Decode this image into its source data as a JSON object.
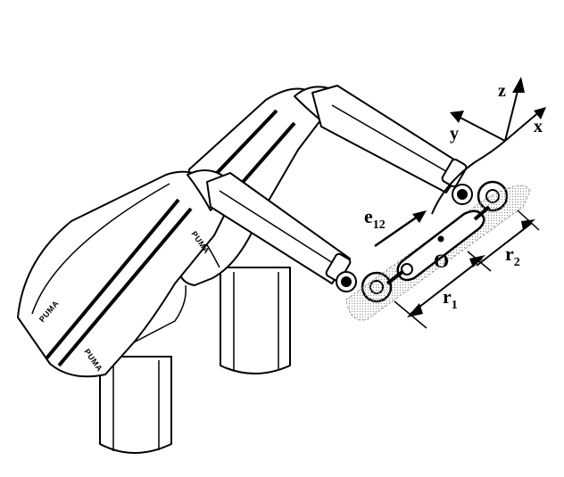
{
  "figure": {
    "axes": {
      "z": "z",
      "y": "y",
      "x": "x"
    },
    "vector_label": {
      "main": "e",
      "sub": "12"
    },
    "origin_label": "O",
    "r1": {
      "main": "r",
      "sub": "1"
    },
    "r2": {
      "main": "r",
      "sub": "2"
    },
    "brand": "PUMA"
  }
}
